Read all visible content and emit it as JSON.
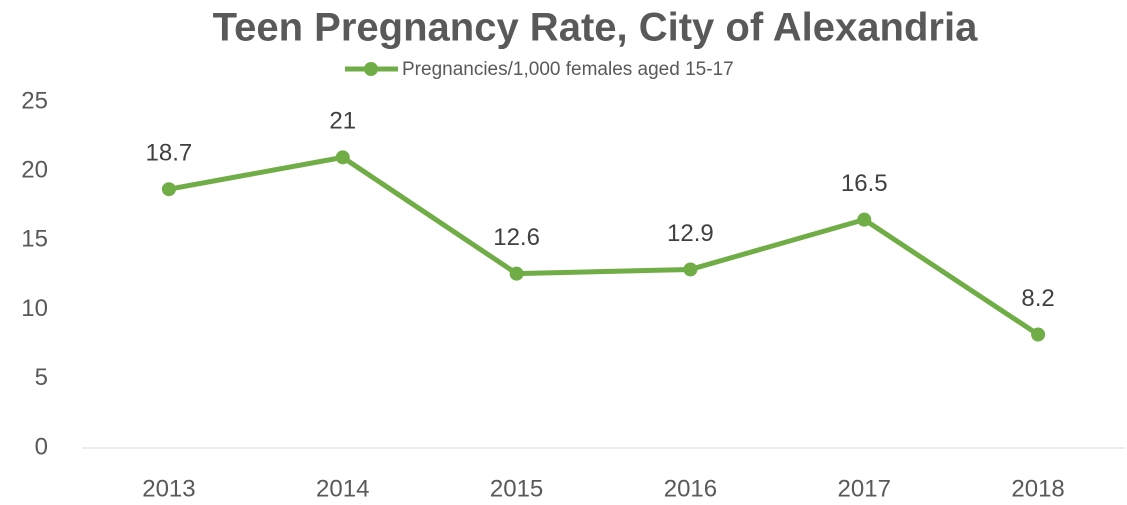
{
  "chart_data": {
    "type": "line",
    "title": "Teen Pregnancy Rate, City of Alexandria",
    "categories": [
      "2013",
      "2014",
      "2015",
      "2016",
      "2017",
      "2018"
    ],
    "series": [
      {
        "name": "Pregnancies/1,000 females aged 15-17",
        "color": "#70ad47",
        "values": [
          18.7,
          21,
          12.6,
          12.9,
          16.5,
          8.2
        ]
      }
    ],
    "ylim": [
      0,
      25
    ],
    "yticks": [
      0,
      5,
      10,
      15,
      20,
      25
    ],
    "grid": false,
    "legend": "top",
    "data_labels": true
  }
}
